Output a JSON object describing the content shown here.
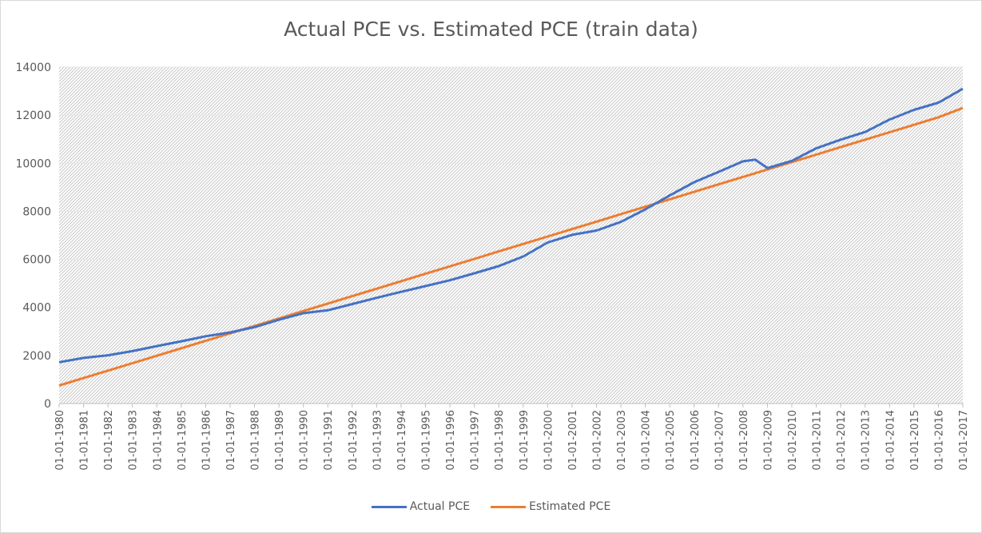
{
  "chart_data": {
    "type": "line",
    "title": "Actual PCE vs. Estimated PCE (train data)",
    "xlabel": "",
    "ylabel": "",
    "ylim": [
      0,
      14000
    ],
    "yticks": [
      "0",
      "2000",
      "4000",
      "6000",
      "8000",
      "10000",
      "12000",
      "14000"
    ],
    "x_tick_labels": [
      "01-01-1980",
      "01-01-1981",
      "01-01-1982",
      "01-01-1983",
      "01-01-1984",
      "01-01-1985",
      "01-01-1986",
      "01-01-1987",
      "01-01-1988",
      "01-01-1989",
      "01-01-1990",
      "01-01-1991",
      "01-01-1992",
      "01-01-1993",
      "01-01-1994",
      "01-01-1995",
      "01-01-1996",
      "01-01-1997",
      "01-01-1998",
      "01-01-1999",
      "01-01-2000",
      "01-01-2001",
      "01-01-2002",
      "01-01-2003",
      "01-01-2004",
      "01-01-2005",
      "01-01-2006",
      "01-01-2007",
      "01-01-2008",
      "01-01-2009",
      "01-01-2010",
      "01-01-2011",
      "01-01-2012",
      "01-01-2013",
      "01-01-2014",
      "01-01-2015",
      "01-01-2016",
      "01-01-2017"
    ],
    "x": [
      "01-01-1980",
      "01-01-1981",
      "01-01-1982",
      "01-01-1983",
      "01-01-1984",
      "01-01-1985",
      "01-01-1986",
      "01-01-1987",
      "01-01-1988",
      "01-01-1989",
      "01-01-1990",
      "01-01-1991",
      "01-01-1992",
      "01-01-1993",
      "01-01-1994",
      "01-01-1995",
      "01-01-1996",
      "01-01-1997",
      "01-01-1998",
      "01-01-1999",
      "01-01-2000",
      "01-01-2001",
      "01-01-2002",
      "01-01-2003",
      "01-01-2004",
      "01-01-2005",
      "01-01-2006",
      "01-01-2007",
      "01-01-2008",
      "01-07-2008",
      "01-01-2009",
      "01-01-2010",
      "01-01-2011",
      "01-01-2012",
      "01-01-2013",
      "01-01-2014",
      "01-01-2015",
      "01-01-2016",
      "01-01-2017"
    ],
    "series": [
      {
        "name": "Actual PCE",
        "color": "#4472c4",
        "values": [
          1720,
          1900,
          2010,
          2180,
          2390,
          2590,
          2800,
          2960,
          3180,
          3490,
          3760,
          3880,
          4140,
          4400,
          4650,
          4890,
          5130,
          5420,
          5720,
          6120,
          6700,
          7020,
          7200,
          7560,
          8080,
          8660,
          9210,
          9640,
          10080,
          10150,
          9800,
          10100,
          10620,
          10980,
          11300,
          11820,
          12220,
          12520,
          13100
        ]
      },
      {
        "name": "Estimated PCE",
        "color": "#ed7d31",
        "values": [
          750,
          1060,
          1370,
          1680,
          1990,
          2300,
          2610,
          2920,
          3230,
          3540,
          3850,
          4160,
          4470,
          4780,
          5090,
          5400,
          5710,
          6020,
          6330,
          6640,
          6950,
          7260,
          7570,
          7880,
          8190,
          8500,
          8810,
          9120,
          9430,
          9585,
          9740,
          10050,
          10360,
          10670,
          10980,
          11290,
          11600,
          11910,
          12300
        ]
      }
    ],
    "grid": true,
    "legend": "bottom"
  }
}
